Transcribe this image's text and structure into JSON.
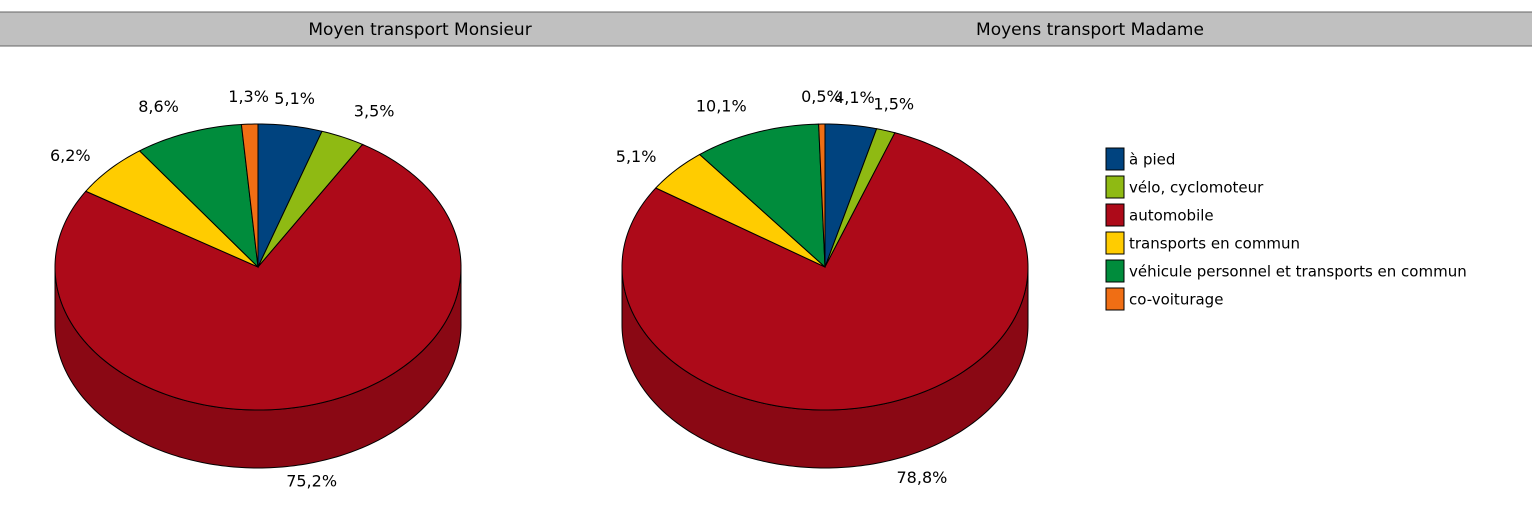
{
  "chart_data": [
    {
      "type": "pie",
      "title": "Moyen transport Monsieur",
      "values": [
        5.1,
        3.5,
        75.2,
        6.2,
        8.6,
        1.3
      ],
      "value_labels": [
        "5,1%",
        "3,5%",
        "75,2%",
        "6,2%",
        "8,6%",
        "1,3%"
      ]
    },
    {
      "type": "pie",
      "title": "Moyens transport Madame",
      "values": [
        4.1,
        1.5,
        78.8,
        5.1,
        10.1,
        0.5
      ],
      "value_labels": [
        "4,1%",
        "1,5%",
        "78,8%",
        "5,1%",
        "10,1%",
        "0,5%"
      ]
    }
  ],
  "legend": {
    "categories": [
      "à pied",
      "vélo, cyclomoteur",
      "automobile",
      "transports en commun",
      "véhicule personnel et transports en commun",
      "co-voiturage"
    ],
    "colors": [
      "#00437f",
      "#8fba13",
      "#ad0a19",
      "#ffcc00",
      "#008c3c",
      "#f06e14"
    ]
  }
}
